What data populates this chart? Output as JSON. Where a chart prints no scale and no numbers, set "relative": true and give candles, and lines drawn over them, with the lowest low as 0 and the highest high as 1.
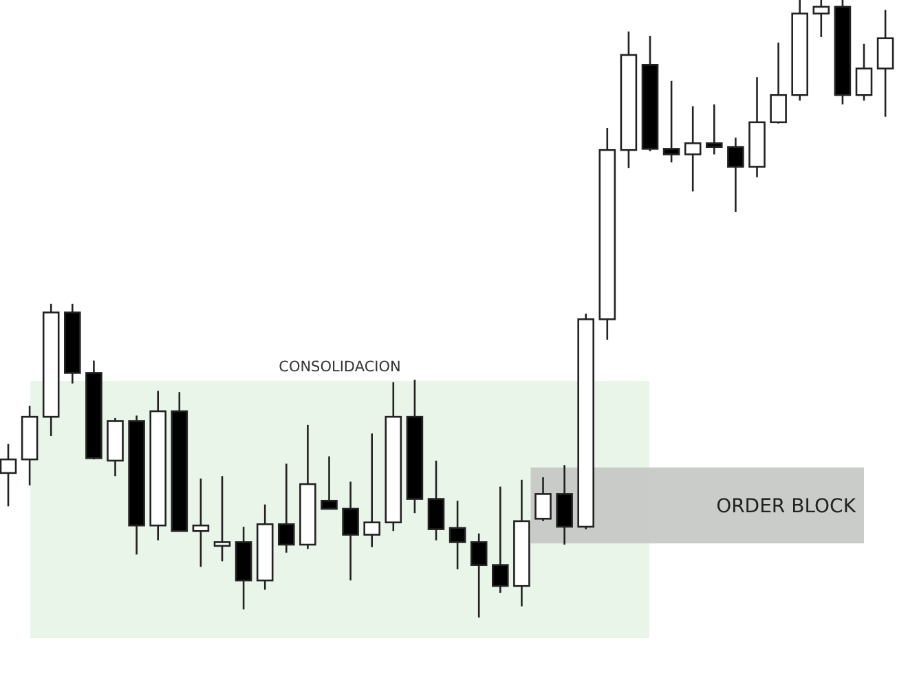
{
  "chart_data": {
    "type": "candlestick",
    "relative": true,
    "categories": [
      null,
      null,
      null,
      null,
      null,
      null,
      null,
      null,
      null,
      null,
      null,
      null,
      null,
      null,
      null,
      null,
      null,
      null,
      null,
      null,
      null,
      null,
      null,
      null,
      null,
      null,
      null,
      null,
      null,
      null,
      null,
      null,
      null,
      null,
      null,
      null,
      null,
      null,
      null,
      null,
      null,
      null
    ],
    "annotations": [
      "CONSOLIDACION"
    ],
    "ohlc": [
      [
        0.234,
        0.281,
        0.18,
        0.256
      ],
      [
        0.256,
        0.343,
        0.214,
        0.325
      ],
      [
        0.325,
        0.508,
        0.294,
        0.494
      ],
      [
        0.494,
        0.508,
        0.379,
        0.396
      ],
      [
        0.396,
        0.416,
        0.256,
        0.258
      ],
      [
        0.254,
        0.323,
        0.229,
        0.318
      ],
      [
        0.318,
        0.327,
        0.102,
        0.149
      ],
      [
        0.149,
        0.367,
        0.125,
        0.334
      ],
      [
        0.334,
        0.365,
        0.14,
        0.14
      ],
      [
        0.14,
        0.225,
        0.082,
        0.149
      ],
      [
        0.116,
        0.229,
        0.091,
        0.122
      ],
      [
        0.122,
        0.147,
        0.013,
        0.06
      ],
      [
        0.06,
        0.183,
        0.045,
        0.151
      ],
      [
        0.151,
        0.249,
        0.105,
        0.118
      ],
      [
        0.118,
        0.312,
        0.111,
        0.216
      ],
      [
        0.189,
        0.261,
        0.176,
        0.176
      ],
      [
        0.176,
        0.22,
        0.06,
        0.134
      ],
      [
        0.134,
        0.298,
        0.114,
        0.154
      ],
      [
        0.154,
        0.381,
        0.14,
        0.325
      ],
      [
        0.325,
        0.385,
        0.169,
        0.192
      ],
      [
        0.192,
        0.254,
        0.125,
        0.143
      ],
      [
        0.145,
        0.189,
        0.078,
        0.122
      ],
      [
        0.122,
        0.136,
        0,
        0.085
      ],
      [
        0.085,
        0.212,
        0.04,
        0.051
      ],
      [
        0.051,
        0.223,
        0.018,
        0.156
      ],
      [
        0.16,
        0.227,
        0.156,
        0.2
      ],
      [
        0.2,
        0.247,
        0.118,
        0.147
      ],
      [
        0.147,
        0.492,
        0.143,
        0.483
      ],
      [
        0.483,
        0.793,
        0.45,
        0.757
      ],
      [
        0.757,
        0.949,
        0.728,
        0.911
      ],
      [
        0.895,
        0.942,
        0.755,
        0.759
      ],
      [
        0.759,
        0.869,
        0.737,
        0.75
      ],
      [
        0.75,
        0.828,
        0.69,
        0.768
      ],
      [
        0.768,
        0.831,
        0.75,
        0.762
      ],
      [
        0.762,
        0.777,
        0.657,
        0.73
      ],
      [
        0.73,
        0.875,
        0.713,
        0.802
      ],
      [
        0.802,
        0.931,
        0.8,
        0.846
      ],
      [
        0.846,
        1,
        0.837,
        0.978
      ],
      [
        0.978,
        1,
        0.94,
        0.989
      ],
      [
        0.989,
        1,
        0.831,
        0.846
      ],
      [
        0.846,
        0.929,
        0.837,
        0.889
      ],
      [
        0.889,
        0.984,
        0.811,
        0.938
      ]
    ],
    "bands": [
      {
        "axis": "y",
        "from": 0.12,
        "to": 0.243,
        "label": "ORDER BLOCK",
        "color": "#c4c7c4"
      }
    ]
  }
}
